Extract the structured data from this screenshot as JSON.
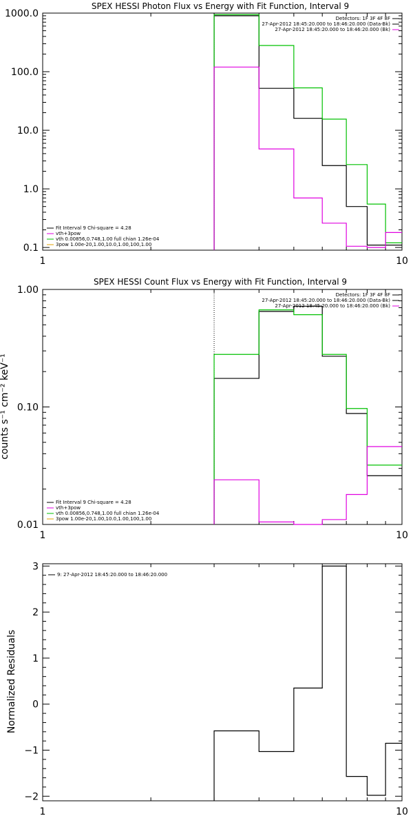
{
  "chart_data": [
    {
      "type": "line",
      "title": "SPEX HESSI Photon Flux vs Energy with Fit Function, Interval 9",
      "xlabel": "",
      "ylabel": "",
      "xscale": "log",
      "yscale": "log",
      "xlim": [
        1,
        10
      ],
      "ylim": [
        0.09,
        1000
      ],
      "x_ticks": [
        "1",
        "10"
      ],
      "y_ticks": [
        "0.1",
        "1.0",
        "10.0",
        "100.0",
        "1000.0"
      ],
      "y_tick_values": [
        0.1,
        1,
        10,
        100,
        1000
      ],
      "vline": 3,
      "edges": [
        3,
        4,
        5,
        6,
        7,
        8,
        9,
        10
      ],
      "legend_top_right": [
        {
          "text": "Detectors: 1F 3F 4F 8F",
          "color": "#000000"
        },
        {
          "text": "27-Apr-2012 18:45:20.000 to 18:46:20.000 (Data-Bk)",
          "color": "#000000"
        },
        {
          "text": "27-Apr-2012 18:45:20.000 to 18:46:20.000 (Bk)",
          "color": "#e000e0"
        }
      ],
      "legend_bottom_left": [
        {
          "text": "Fit Interval 9   Chi-square = 4.28",
          "color": "#000000"
        },
        {
          "text": "vth+3pow",
          "color": "#e000e0"
        },
        {
          "text": "vth 0.00856,0.748,1.00   full chian 1.26e-04",
          "color": "#00c000"
        },
        {
          "text": "3pow 1.00e-20,1.00,10.0,1.00,100,1.00",
          "color": "#e0a000"
        }
      ],
      "series": [
        {
          "color": "#000000",
          "values": [
            900,
            52,
            16,
            2.5,
            0.5,
            0.11,
            0.11
          ]
        },
        {
          "color": "#00c000",
          "values": [
            940,
            280,
            53,
            15.5,
            2.6,
            0.55,
            0.12
          ]
        },
        {
          "color": "#e000e0",
          "values": [
            120,
            4.8,
            0.7,
            0.26,
            0.105,
            0.1,
            0.18
          ]
        }
      ]
    },
    {
      "type": "line",
      "title": "SPEX HESSI Count Flux vs Energy with Fit Function, Interval 9",
      "xlabel": "",
      "ylabel": "counts s⁻¹ cm⁻² keV⁻¹",
      "xscale": "log",
      "yscale": "log",
      "xlim": [
        1,
        10
      ],
      "ylim": [
        0.01,
        1
      ],
      "x_ticks": [
        "1",
        "10"
      ],
      "y_ticks": [
        "0.01",
        "0.10",
        "1.00"
      ],
      "y_tick_values": [
        0.01,
        0.1,
        1
      ],
      "vline": 3,
      "edges": [
        3,
        4,
        5,
        6,
        7,
        8,
        9,
        10
      ],
      "legend_top_right": [
        {
          "text": "Detectors: 1F 3F 4F 8F",
          "color": "#000000"
        },
        {
          "text": "27-Apr-2012 18:45:20.000 to 18:46:20.000 (Data-Bk)",
          "color": "#000000"
        },
        {
          "text": "27-Apr-2012 18:45:20.000 to 18:46:20.000 (Bk)",
          "color": "#e000e0"
        }
      ],
      "legend_bottom_left": [
        {
          "text": "Fit Interval 9   Chi-square = 4.28",
          "color": "#000000"
        },
        {
          "text": "vth+3pow",
          "color": "#e000e0"
        },
        {
          "text": "vth 0.00856,0.748,1.00   full chian 1.26e-04",
          "color": "#00c000"
        },
        {
          "text": "3pow 1.00e-20,1.00,10.0,1.00,100,1.00",
          "color": "#e0a000"
        }
      ],
      "series": [
        {
          "color": "#000000",
          "values": [
            0.175,
            0.65,
            0.72,
            0.27,
            0.088,
            0.026,
            0.026
          ]
        },
        {
          "color": "#00c000",
          "values": [
            0.28,
            0.67,
            0.61,
            0.28,
            0.097,
            0.032,
            0.032
          ]
        },
        {
          "color": "#e000e0",
          "values": [
            0.024,
            0.0105,
            0.01,
            0.011,
            0.018,
            0.046,
            0.046
          ]
        }
      ]
    },
    {
      "type": "line",
      "title": "",
      "xlabel": "",
      "ylabel": "Normalized Residuals",
      "xscale": "log",
      "yscale": "linear",
      "xlim": [
        1,
        10
      ],
      "ylim": [
        -2.1,
        3.05
      ],
      "x_ticks": [
        "1",
        "10"
      ],
      "y_ticks": [
        "−2",
        "−1",
        "0",
        "1",
        "2",
        "3"
      ],
      "y_tick_values": [
        -2,
        -1,
        0,
        1,
        2,
        3
      ],
      "edges": [
        3,
        4,
        5,
        6,
        7,
        8,
        9,
        10
      ],
      "legend_top_left": [
        {
          "text": "9: 27-Apr-2012 18:45:20.000 to 18:46:20.000",
          "color": "#000000"
        }
      ],
      "series": [
        {
          "color": "#000000",
          "values": [
            -0.58,
            -1.03,
            0.35,
            3.0,
            -1.57,
            -1.98,
            -0.85
          ]
        }
      ]
    }
  ]
}
